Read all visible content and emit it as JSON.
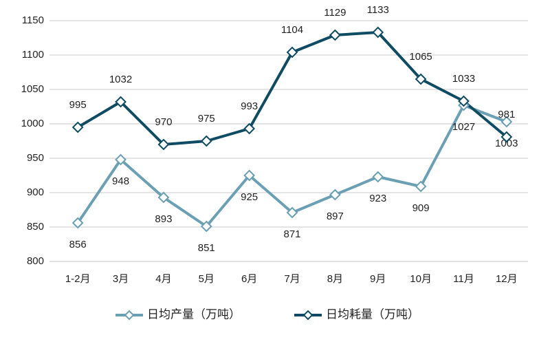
{
  "chart_data": {
    "type": "line",
    "categories": [
      "1-2月",
      "3月",
      "4月",
      "5月",
      "6月",
      "7月",
      "8月",
      "9月",
      "10月",
      "11月",
      "12月"
    ],
    "series": [
      {
        "name": "日均产量（万吨）",
        "color": "#6b9fb4",
        "values": [
          856,
          948,
          893,
          851,
          925,
          871,
          897,
          923,
          909,
          1027,
          1003
        ]
      },
      {
        "name": "日均耗量（万吨）",
        "color": "#0f4c63",
        "values": [
          995,
          1032,
          970,
          975,
          993,
          1104,
          1129,
          1133,
          1065,
          1033,
          981
        ]
      }
    ],
    "ylim": [
      800,
      1150
    ],
    "yticks": [
      800,
      850,
      900,
      950,
      1000,
      1050,
      1100,
      1150
    ],
    "grid": true
  }
}
